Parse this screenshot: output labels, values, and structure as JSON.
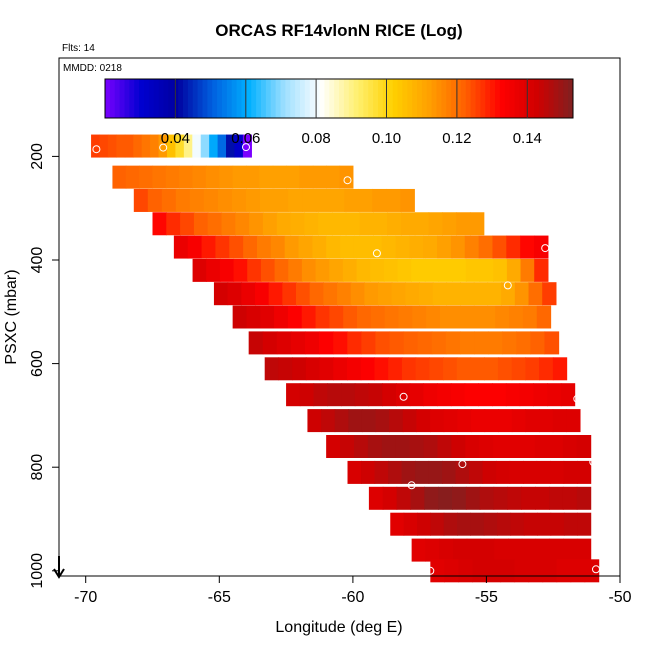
{
  "chart_data": {
    "type": "heatmap",
    "title": "ORCAS RF14vlonN RICE (Log)",
    "flights_label": "Flts: 14",
    "date_label": "MMDD: 0218",
    "xlabel": "Longitude (deg E)",
    "ylabel": "PSXC (mbar)",
    "xlim": [
      -71,
      -50
    ],
    "ylim": [
      1010,
      10
    ],
    "x_ticks": [
      -70,
      -65,
      -60,
      -55,
      -50
    ],
    "x_tick_labels": [
      "-70",
      "-65",
      "-60",
      "-55",
      "-50"
    ],
    "y_ticks": [
      200,
      400,
      600,
      800,
      1000
    ],
    "y_tick_labels": [
      "200",
      "400",
      "600",
      "800",
      "1000"
    ],
    "colorbar": {
      "min": 0.02,
      "max": 0.153,
      "ticks": [
        0.04,
        0.06,
        0.08,
        0.1,
        0.12,
        0.14
      ],
      "tick_labels": [
        "0.04",
        "0.06",
        "0.08",
        "0.10",
        "0.12",
        "0.14"
      ],
      "colors": [
        "#7a00ff",
        "#0000d0",
        "#0000a0",
        "#0060e0",
        "#00b0ff",
        "#a0e0ff",
        "#ffffff",
        "#fff070",
        "#ffd000",
        "#ffa000",
        "#ff6000",
        "#ff0000",
        "#d00000",
        "#802020"
      ]
    },
    "pressure_bands": [
      {
        "p": 180,
        "lon_min": -69.8,
        "lon_max": -63.8,
        "values": [
          0.126,
          0.125,
          0.124,
          0.123,
          0.123,
          0.121,
          0.119,
          0.117,
          0.113,
          0.105,
          0.098,
          0.09,
          0.08,
          0.07,
          0.06,
          0.052,
          0.042,
          0.032,
          0.02
        ]
      },
      {
        "p": 240,
        "lon_min": -69.0,
        "lon_max": -60.0,
        "values": [
          0.122,
          0.121,
          0.12,
          0.119,
          0.118,
          0.117,
          0.116,
          0.115,
          0.114,
          0.113,
          0.113,
          0.112,
          0.112,
          0.112,
          0.113,
          0.113,
          0.113,
          0.114
        ]
      },
      {
        "p": 285,
        "lon_min": -68.2,
        "lon_max": -57.7,
        "values": [
          0.125,
          0.122,
          0.12,
          0.118,
          0.117,
          0.116,
          0.115,
          0.114,
          0.113,
          0.112,
          0.112,
          0.111,
          0.111,
          0.111,
          0.111,
          0.112,
          0.112,
          0.113,
          0.113,
          0.114
        ]
      },
      {
        "p": 330,
        "lon_min": -67.5,
        "lon_max": -55.1,
        "values": [
          0.132,
          0.128,
          0.125,
          0.122,
          0.12,
          0.118,
          0.116,
          0.114,
          0.112,
          0.11,
          0.109,
          0.108,
          0.107,
          0.107,
          0.107,
          0.108,
          0.108,
          0.109,
          0.11,
          0.11,
          0.111,
          0.112,
          0.113,
          0.113
        ]
      },
      {
        "p": 375,
        "lon_min": -66.7,
        "lon_max": -52.7,
        "values": [
          0.137,
          0.134,
          0.13,
          0.127,
          0.124,
          0.121,
          0.118,
          0.116,
          0.113,
          0.111,
          0.109,
          0.107,
          0.106,
          0.106,
          0.106,
          0.107,
          0.108,
          0.109,
          0.11,
          0.112,
          0.114,
          0.117,
          0.12,
          0.124,
          0.128,
          0.132,
          0.134
        ]
      },
      {
        "p": 420,
        "lon_min": -66.0,
        "lon_max": -52.7,
        "values": [
          0.14,
          0.137,
          0.134,
          0.131,
          0.127,
          0.124,
          0.121,
          0.118,
          0.115,
          0.113,
          0.111,
          0.109,
          0.107,
          0.106,
          0.105,
          0.104,
          0.103,
          0.103,
          0.103,
          0.103,
          0.104,
          0.104,
          0.105,
          0.11,
          0.118,
          0.128
        ]
      },
      {
        "p": 465,
        "lon_min": -65.2,
        "lon_max": -52.4,
        "values": [
          0.142,
          0.14,
          0.137,
          0.134,
          0.13,
          0.127,
          0.124,
          0.121,
          0.119,
          0.117,
          0.115,
          0.113,
          0.112,
          0.111,
          0.11,
          0.109,
          0.108,
          0.108,
          0.108,
          0.108,
          0.108,
          0.11,
          0.114,
          0.12,
          0.126
        ]
      },
      {
        "p": 510,
        "lon_min": -64.5,
        "lon_max": -52.6,
        "values": [
          0.143,
          0.141,
          0.139,
          0.136,
          0.133,
          0.13,
          0.127,
          0.125,
          0.123,
          0.121,
          0.12,
          0.119,
          0.118,
          0.117,
          0.116,
          0.115,
          0.115,
          0.115,
          0.115,
          0.116,
          0.117,
          0.118,
          0.121
        ]
      },
      {
        "p": 560,
        "lon_min": -63.9,
        "lon_max": -52.3,
        "values": [
          0.144,
          0.142,
          0.14,
          0.138,
          0.136,
          0.133,
          0.131,
          0.128,
          0.126,
          0.124,
          0.123,
          0.122,
          0.121,
          0.12,
          0.119,
          0.118,
          0.118,
          0.118,
          0.119,
          0.12,
          0.122,
          0.124
        ]
      },
      {
        "p": 610,
        "lon_min": -63.3,
        "lon_max": -52.0,
        "values": [
          0.145,
          0.144,
          0.143,
          0.141,
          0.139,
          0.137,
          0.135,
          0.133,
          0.131,
          0.129,
          0.127,
          0.126,
          0.125,
          0.124,
          0.123,
          0.123,
          0.123,
          0.124,
          0.125,
          0.126,
          0.128,
          0.13
        ]
      },
      {
        "p": 660,
        "lon_min": -62.5,
        "lon_max": -51.7,
        "values": [
          0.142,
          0.143,
          0.145,
          0.146,
          0.146,
          0.145,
          0.144,
          0.142,
          0.14,
          0.138,
          0.136,
          0.135,
          0.134,
          0.133,
          0.133,
          0.133,
          0.134,
          0.135,
          0.136,
          0.137,
          0.138
        ]
      },
      {
        "p": 710,
        "lon_min": -61.7,
        "lon_max": -51.5,
        "values": [
          0.143,
          0.145,
          0.147,
          0.149,
          0.149,
          0.148,
          0.146,
          0.144,
          0.142,
          0.14,
          0.139,
          0.138,
          0.137,
          0.137,
          0.137,
          0.138,
          0.139,
          0.139,
          0.14,
          0.14
        ]
      },
      {
        "p": 760,
        "lon_min": -61.0,
        "lon_max": -51.1,
        "values": [
          0.142,
          0.144,
          0.146,
          0.148,
          0.149,
          0.149,
          0.148,
          0.147,
          0.145,
          0.143,
          0.141,
          0.14,
          0.139,
          0.139,
          0.139,
          0.14,
          0.14,
          0.141,
          0.142
        ]
      },
      {
        "p": 810,
        "lon_min": -60.2,
        "lon_max": -51.1,
        "values": [
          0.141,
          0.143,
          0.145,
          0.147,
          0.149,
          0.15,
          0.15,
          0.149,
          0.147,
          0.145,
          0.143,
          0.142,
          0.141,
          0.141,
          0.141,
          0.141,
          0.142,
          0.142
        ]
      },
      {
        "p": 860,
        "lon_min": -59.4,
        "lon_max": -51.1,
        "values": [
          0.14,
          0.142,
          0.145,
          0.148,
          0.151,
          0.152,
          0.151,
          0.149,
          0.147,
          0.146,
          0.145,
          0.144,
          0.144,
          0.145,
          0.145,
          0.146
        ]
      },
      {
        "p": 910,
        "lon_min": -58.6,
        "lon_max": -51.1,
        "values": [
          0.139,
          0.141,
          0.143,
          0.145,
          0.147,
          0.148,
          0.148,
          0.147,
          0.146,
          0.145,
          0.144,
          0.144,
          0.144,
          0.145,
          0.145
        ]
      },
      {
        "p": 960,
        "lon_min": -57.8,
        "lon_max": -51.1,
        "values": [
          0.139,
          0.14,
          0.141,
          0.142,
          0.142,
          0.142,
          0.141,
          0.141,
          0.141,
          0.141,
          0.141,
          0.141,
          0.141
        ]
      },
      {
        "p": 1000,
        "lon_min": -57.1,
        "lon_max": -50.8,
        "values": [
          0.139,
          0.14,
          0.141,
          0.142,
          0.142,
          0.142,
          0.141,
          0.141,
          0.141,
          0.14,
          0.14,
          0.14
        ]
      }
    ],
    "points": [
      {
        "lon": -69.6,
        "p": 186
      },
      {
        "lon": -67.1,
        "p": 183
      },
      {
        "lon": -64.0,
        "p": 182
      },
      {
        "lon": -60.2,
        "p": 246
      },
      {
        "lon": -52.8,
        "p": 377
      },
      {
        "lon": -59.1,
        "p": 387
      },
      {
        "lon": -54.2,
        "p": 449
      },
      {
        "lon": -58.1,
        "p": 664
      },
      {
        "lon": -51.6,
        "p": 668
      },
      {
        "lon": -55.9,
        "p": 794
      },
      {
        "lon": -51.0,
        "p": 790
      },
      {
        "lon": -57.8,
        "p": 835
      },
      {
        "lon": -57.1,
        "p": 1000
      },
      {
        "lon": -50.9,
        "p": 997
      }
    ],
    "arrow_lon": -71.0
  }
}
